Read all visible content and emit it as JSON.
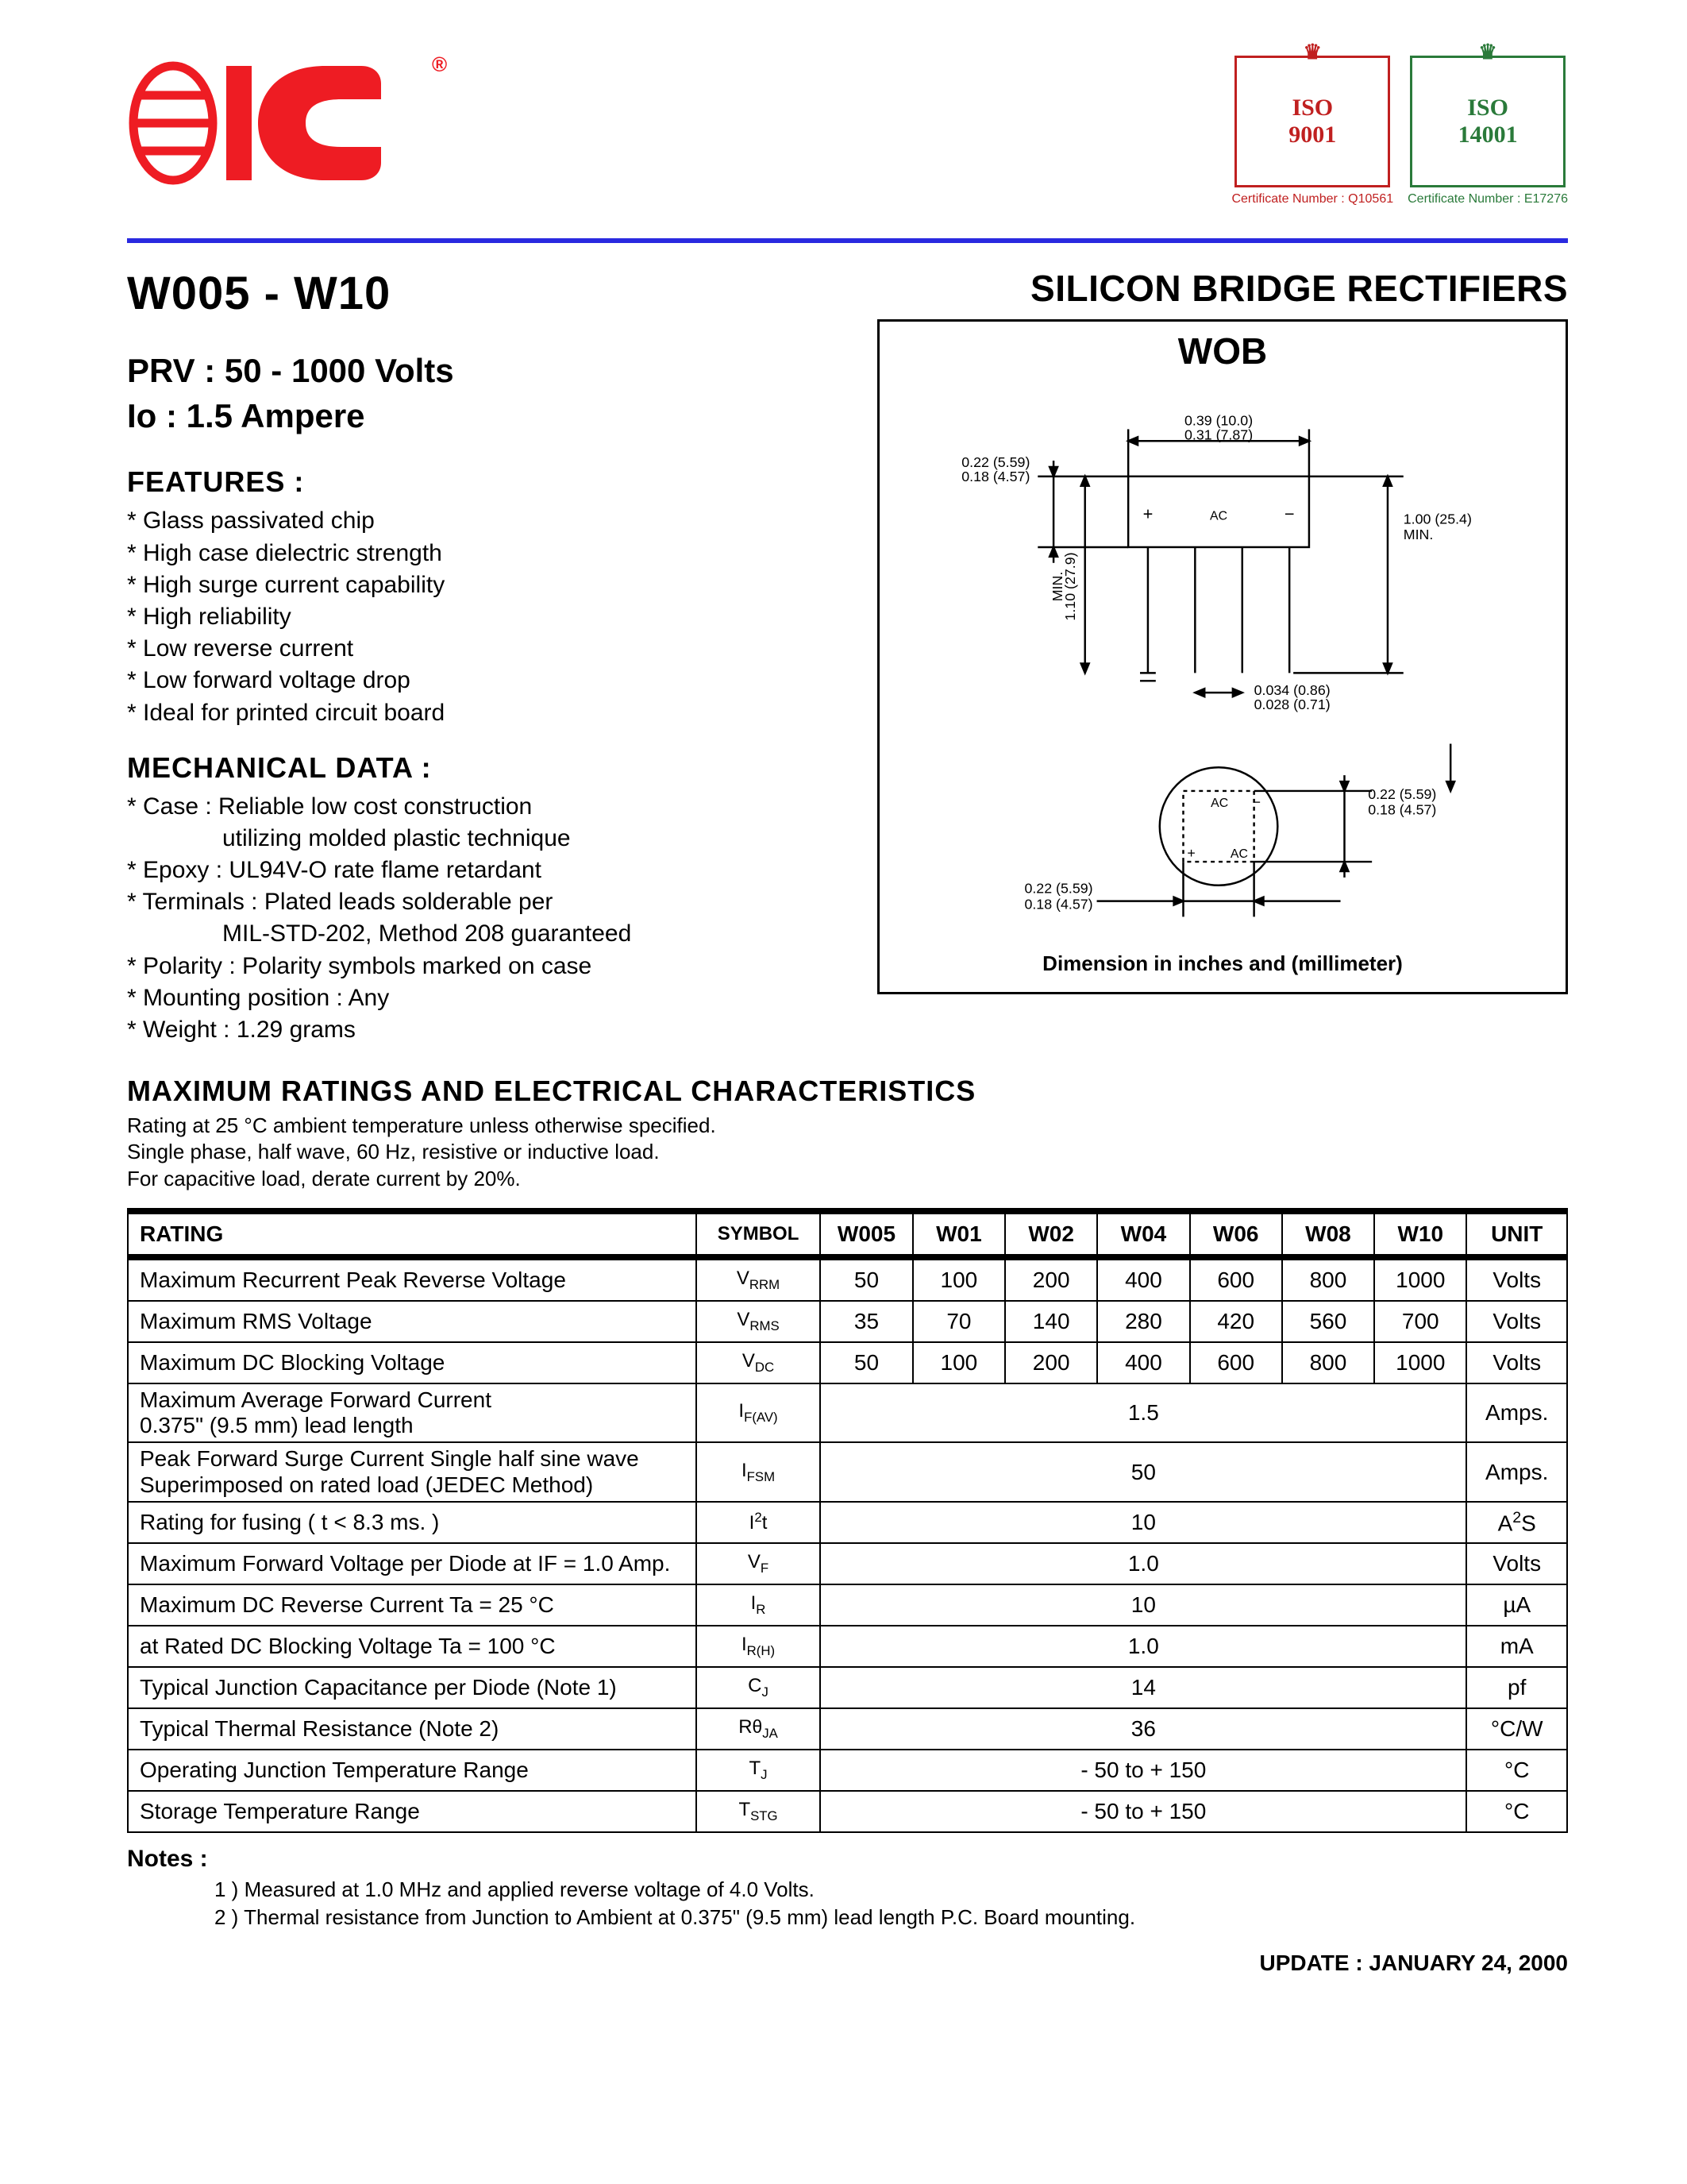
{
  "header": {
    "logo_alt": "EIC",
    "logo_color": "#ee1c23",
    "reg_mark": "®",
    "iso_left": {
      "label": "ISO\n9001",
      "cert": "Certificate Number : Q10561",
      "color": "#c02020"
    },
    "iso_right": {
      "label": "ISO\n14001",
      "cert": "Certificate Number : E17276",
      "color": "#2a7a3a"
    },
    "rule_color": "#2a2ae0"
  },
  "title_left": "W005 - W10",
  "title_right": "SILICON BRIDGE RECTIFIERS",
  "sub_specs": {
    "prv": "PRV : 50 - 1000 Volts",
    "io": "Io : 1.5 Ampere"
  },
  "features": {
    "heading": "FEATURES :",
    "items": [
      "Glass passivated chip",
      "High case dielectric strength",
      "High surge current capability",
      "High reliability",
      "Low reverse current",
      "Low forward voltage drop",
      "Ideal for printed circuit board"
    ]
  },
  "mechanical": {
    "heading": "MECHANICAL  DATA :",
    "items": [
      {
        "text": "Case : Reliable low cost construction",
        "star": true
      },
      {
        "text": "utilizing molded plastic technique",
        "star": false
      },
      {
        "text": "Epoxy : UL94V-O rate flame retardant",
        "star": true
      },
      {
        "text": "Terminals : Plated leads solderable per",
        "star": true
      },
      {
        "text": "MIL-STD-202, Method 208 guaranteed",
        "star": false
      },
      {
        "text": "Polarity : Polarity symbols marked on case",
        "star": true
      },
      {
        "text": "Mounting  position : Any",
        "star": true
      },
      {
        "text": "Weight :  1.29 grams",
        "star": true
      }
    ]
  },
  "diagram": {
    "package_name": "WOB",
    "caption": "Dimension in inches and (millimeter)",
    "dims": {
      "width_top_a": "0.39 (10.0)",
      "width_top_b": "0.31 (7.87)",
      "body_h_a": "0.22 (5.59)",
      "body_h_b": "0.18 (4.57)",
      "ac_label": "AC",
      "lead_len_a": "1.00 (25.4)",
      "lead_len_b": "MIN.",
      "overall_h_a": "1.10 (27.9)",
      "overall_h_b": "MIN.",
      "lead_dia_a": "0.034 (0.86)",
      "lead_dia_b": "0.028 (0.71)",
      "side_a": "0.22 (5.59)",
      "side_b": "0.18 (4.57)",
      "side2_a": "0.22 (5.59)",
      "side2_b": "0.18 (4.57)"
    }
  },
  "ratings_section": {
    "heading": "MAXIMUM  RATINGS  AND  ELECTRICAL  CHARACTERISTICS",
    "intro": [
      "Rating at  25 °C ambient temperature unless otherwise specified.",
      "Single phase, half wave, 60 Hz, resistive or inductive load.",
      "For capacitive load, derate current by 20%."
    ]
  },
  "table": {
    "columns": [
      "RATING",
      "SYMBOL",
      "W005",
      "W01",
      "W02",
      "W04",
      "W06",
      "W08",
      "W10",
      "UNIT"
    ],
    "rows": [
      {
        "r": "Maximum Recurrent Peak Reverse Voltage",
        "s": "VRRM",
        "v": [
          "50",
          "100",
          "200",
          "400",
          "600",
          "800",
          "1000"
        ],
        "u": "Volts"
      },
      {
        "r": "Maximum RMS Voltage",
        "s": "VRMS",
        "v": [
          "35",
          "70",
          "140",
          "280",
          "420",
          "560",
          "700"
        ],
        "u": "Volts"
      },
      {
        "r": "Maximum DC Blocking Voltage",
        "s": "VDC",
        "v": [
          "50",
          "100",
          "200",
          "400",
          "600",
          "800",
          "1000"
        ],
        "u": "Volts"
      },
      {
        "r": "Maximum Average Forward Current\n0.375\" (9.5 mm) lead length",
        "s": "IF(AV)",
        "span": "1.5",
        "u": "Amps."
      },
      {
        "r": "Peak Forward Surge Current Single half sine wave\nSuperimposed on rated load (JEDEC Method)",
        "s": "IFSM",
        "span": "50",
        "u": "Amps."
      },
      {
        "r": "Rating for fusing    ( t < 8.3 ms. )",
        "s": "I²t",
        "span": "10",
        "u": "A²S"
      },
      {
        "r": "Maximum Forward Voltage per Diode at IF = 1.0 Amp.",
        "s": "VF",
        "span": "1.0",
        "u": "Volts"
      },
      {
        "r": "Maximum DC Reverse Current         Ta = 25 °C",
        "s": "IR",
        "span": "10",
        "u": "µA"
      },
      {
        "r": "at Rated DC Blocking Voltage          Ta = 100 °C",
        "s": "IR(H)",
        "span": "1.0",
        "u": "mA"
      },
      {
        "r": "Typical Junction Capacitance per Diode (Note 1)",
        "s": "CJ",
        "span": "14",
        "u": "pf"
      },
      {
        "r": "Typical Thermal Resistance (Note 2)",
        "s": "RθJA",
        "span": "36",
        "u": "°C/W"
      },
      {
        "r": "Operating Junction Temperature Range",
        "s": "TJ",
        "span": "- 50 to + 150",
        "u": "°C"
      },
      {
        "r": "Storage Temperature Range",
        "s": "TSTG",
        "span": "- 50 to + 150",
        "u": "°C"
      }
    ]
  },
  "notes": {
    "heading": "Notes :",
    "items": [
      "1 )  Measured at 1.0 MHz and applied reverse voltage of 4.0 Volts.",
      "2 )  Thermal resistance from Junction to Ambient at 0.375\" (9.5 mm) lead length P.C. Board mounting."
    ]
  },
  "update": "UPDATE : JANUARY 24, 2000"
}
